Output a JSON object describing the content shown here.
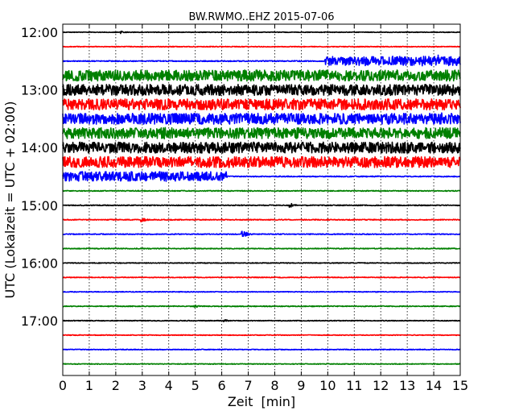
{
  "chart_data": {
    "type": "line",
    "title": "BW.RWMO..EHZ 2015-07-06",
    "xlabel": "Zeit  [min]",
    "ylabel": "UTC (Lokalzeit = UTC + 02:00)",
    "xlim": [
      0,
      15
    ],
    "x_ticks": [
      "0",
      "1",
      "2",
      "3",
      "4",
      "5",
      "6",
      "7",
      "8",
      "9",
      "10",
      "11",
      "12",
      "13",
      "14",
      "15"
    ],
    "y_ticks": [
      "12:00",
      "13:00",
      "14:00",
      "15:00",
      "16:00",
      "17:00"
    ],
    "grid": true,
    "series_colors": [
      "#000000",
      "#ff0000",
      "#0000ff",
      "#008000"
    ],
    "traces": [
      {
        "start": "12:00",
        "color": "#000000",
        "base_amplitude": 0.05,
        "events": [
          {
            "t_min": 2.2,
            "amplitude": 0.25
          }
        ]
      },
      {
        "start": "12:15",
        "color": "#ff0000",
        "base_amplitude": 0.06,
        "events": []
      },
      {
        "start": "12:30",
        "color": "#0000ff",
        "base_amplitude": 0.08,
        "events": [
          {
            "t_min": 9.9,
            "amplitude": 0.8,
            "until_min": 15
          },
          {
            "t_min": 14.2,
            "amplitude": 1.0
          }
        ]
      },
      {
        "start": "12:45",
        "color": "#008000",
        "base_amplitude": 0.9,
        "events": []
      },
      {
        "start": "13:00",
        "color": "#000000",
        "base_amplitude": 0.9,
        "events": []
      },
      {
        "start": "13:15",
        "color": "#ff0000",
        "base_amplitude": 0.9,
        "events": []
      },
      {
        "start": "13:30",
        "color": "#0000ff",
        "base_amplitude": 0.9,
        "events": [
          {
            "t_min": 14.3,
            "amplitude": 1.2
          }
        ]
      },
      {
        "start": "13:45",
        "color": "#008000",
        "base_amplitude": 0.9,
        "events": [
          {
            "t_min": 3.8,
            "amplitude": 1.3
          }
        ]
      },
      {
        "start": "14:00",
        "color": "#000000",
        "base_amplitude": 0.9,
        "events": []
      },
      {
        "start": "14:15",
        "color": "#ff0000",
        "base_amplitude": 0.9,
        "events": []
      },
      {
        "start": "14:30",
        "color": "#0000ff",
        "base_amplitude": 0.08,
        "events": [
          {
            "t_min": 0,
            "amplitude": 0.85,
            "until_min": 6.2
          }
        ]
      },
      {
        "start": "14:45",
        "color": "#008000",
        "base_amplitude": 0.07,
        "events": []
      },
      {
        "start": "15:00",
        "color": "#000000",
        "base_amplitude": 0.07,
        "events": [
          {
            "t_min": 8.6,
            "amplitude": 0.4
          }
        ]
      },
      {
        "start": "15:15",
        "color": "#ff0000",
        "base_amplitude": 0.07,
        "events": [
          {
            "t_min": 3.0,
            "amplitude": 0.35
          }
        ]
      },
      {
        "start": "15:30",
        "color": "#0000ff",
        "base_amplitude": 0.07,
        "events": [
          {
            "t_min": 6.8,
            "amplitude": 0.55
          }
        ]
      },
      {
        "start": "15:45",
        "color": "#008000",
        "base_amplitude": 0.07,
        "events": []
      },
      {
        "start": "16:00",
        "color": "#000000",
        "base_amplitude": 0.06,
        "events": []
      },
      {
        "start": "16:15",
        "color": "#ff0000",
        "base_amplitude": 0.06,
        "events": []
      },
      {
        "start": "16:30",
        "color": "#0000ff",
        "base_amplitude": 0.06,
        "events": []
      },
      {
        "start": "16:45",
        "color": "#008000",
        "base_amplitude": 0.07,
        "events": [
          {
            "t_min": 5.0,
            "amplitude": 0.2
          }
        ]
      },
      {
        "start": "17:00",
        "color": "#000000",
        "base_amplitude": 0.06,
        "events": [
          {
            "t_min": 6.1,
            "amplitude": 0.2
          }
        ]
      },
      {
        "start": "17:15",
        "color": "#ff0000",
        "base_amplitude": 0.06,
        "events": []
      },
      {
        "start": "17:30",
        "color": "#0000ff",
        "base_amplitude": 0.06,
        "events": []
      },
      {
        "start": "17:45",
        "color": "#008000",
        "base_amplitude": 0.06,
        "events": []
      }
    ]
  }
}
